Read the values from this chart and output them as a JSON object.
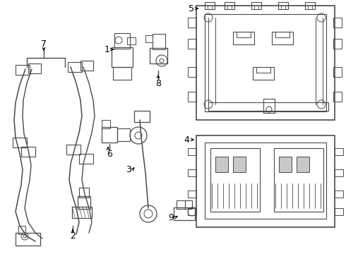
{
  "bg_color": "#ffffff",
  "line_color": "#4a4a4a",
  "text_color": "#000000",
  "fig_width": 4.9,
  "fig_height": 3.6,
  "dpi": 100
}
